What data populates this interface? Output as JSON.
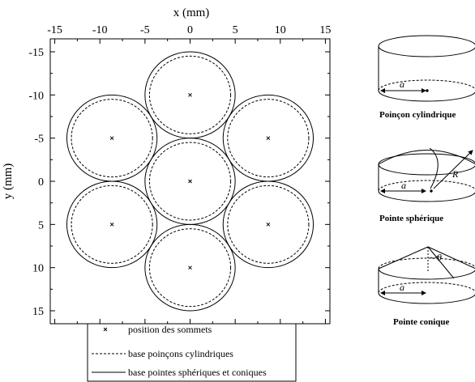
{
  "chart_data": {
    "type": "scatter",
    "xlabel": "x (mm)",
    "ylabel": "y (mm)",
    "xlim": [
      -15.5,
      15.5
    ],
    "ylim": [
      -16.5,
      16.5
    ],
    "y_inverted": true,
    "x_axis_position": "top",
    "x_ticks": [
      -15,
      -10,
      -5,
      0,
      5,
      10,
      15
    ],
    "y_ticks": [
      -15,
      -10,
      -5,
      0,
      5,
      10,
      15
    ],
    "tick_labels_x": [
      "-15",
      "-10",
      "-5",
      "0",
      "5",
      "10",
      "15"
    ],
    "tick_labels_y": [
      "-15",
      "-10",
      "-5",
      "0",
      "5",
      "10",
      "15"
    ],
    "grid": false,
    "series": [
      {
        "name": "position des sommets",
        "marker": "x",
        "x": [
          0,
          -8.66,
          8.66,
          0,
          -8.66,
          8.66,
          0
        ],
        "y": [
          -10,
          -5,
          -5,
          0,
          5,
          5,
          10
        ]
      }
    ],
    "circles": {
      "centers_x": [
        0,
        -8.66,
        8.66,
        0,
        -8.66,
        8.66,
        0
      ],
      "centers_y": [
        -10,
        -5,
        -5,
        0,
        5,
        5,
        10
      ],
      "radius_base_spherique_conique": 5,
      "radius_base_cylindrique": 4.5
    },
    "legend": {
      "placement": "bottom",
      "entries": [
        {
          "label": "position des sommets",
          "style": "x-marker"
        },
        {
          "label": "base poinçons cylindriques",
          "style": "dashed"
        },
        {
          "label": "base pointes sphériques et coniques",
          "style": "solid"
        }
      ]
    }
  },
  "schematics": [
    {
      "caption": "Poinçon cylindrique",
      "symbols": [
        "a"
      ]
    },
    {
      "caption": "Pointe sphérique",
      "symbols": [
        "a",
        "R"
      ]
    },
    {
      "caption": "Pointe conique",
      "symbols": [
        "a",
        "θ"
      ]
    }
  ]
}
